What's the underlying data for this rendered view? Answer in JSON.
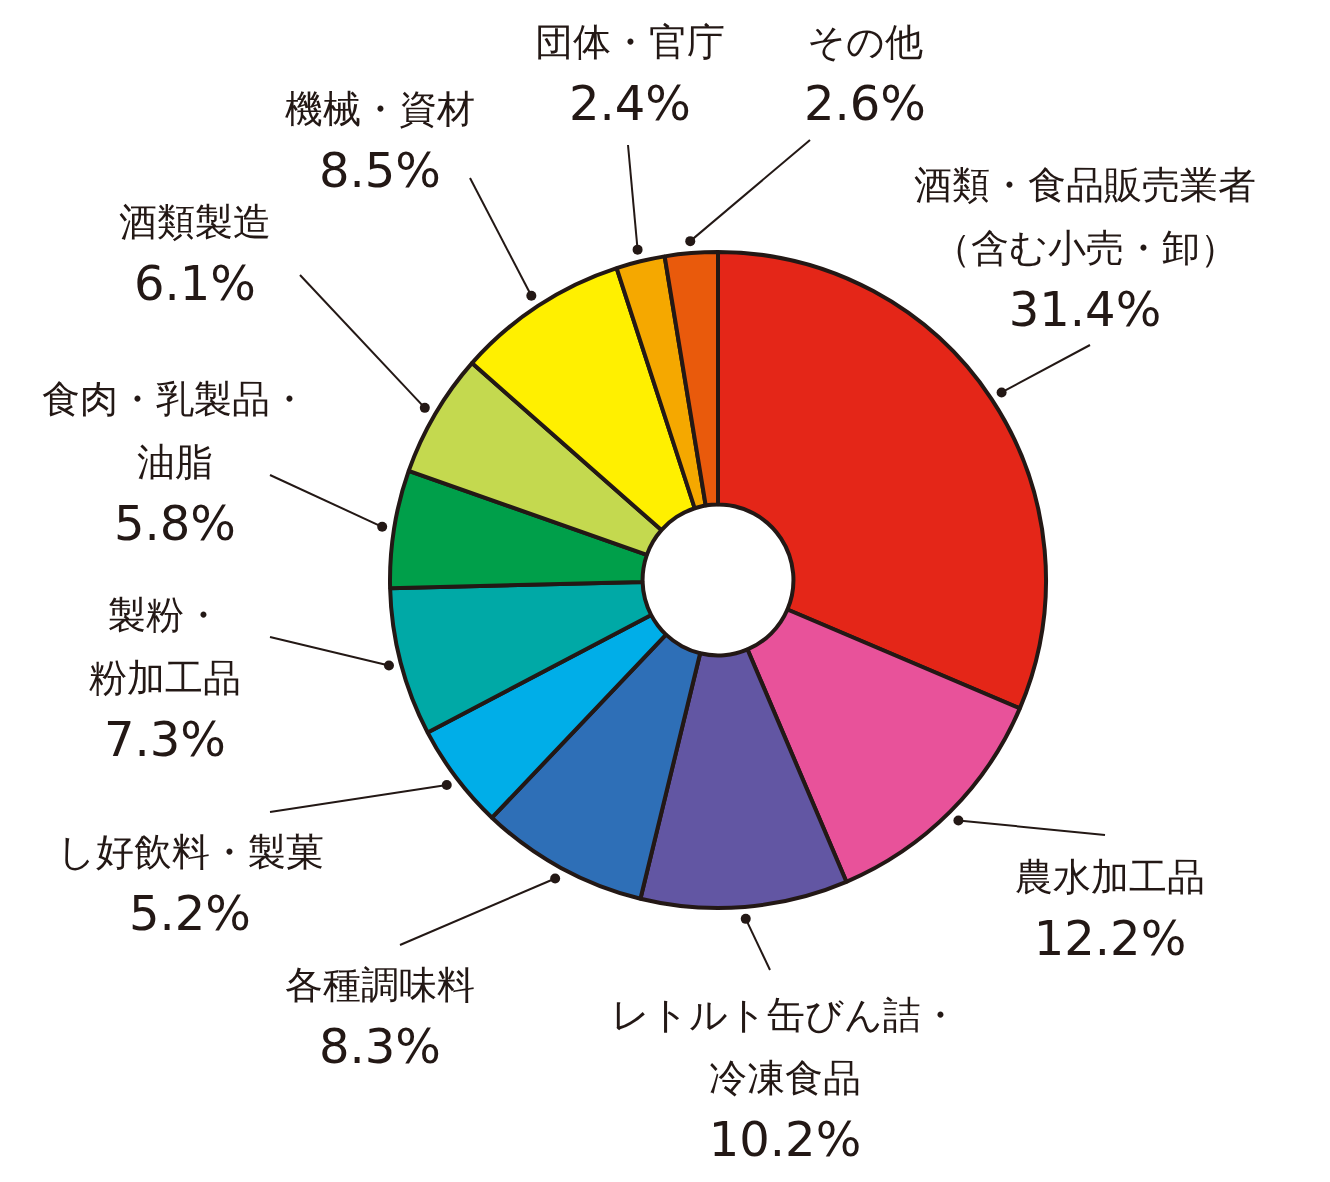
{
  "chart_data": {
    "type": "donut",
    "categories": [
      "酒類・食品販売業者（含む小売・卸）",
      "農水加工品",
      "レトルト缶びん詰・冷凍食品",
      "各種調味料",
      "し好飲料・製菓",
      "製粉・粉加工品",
      "食肉・乳製品・油脂",
      "酒類製造",
      "機械・資材",
      "団体・官庁",
      "その他"
    ],
    "values": [
      31.4,
      12.2,
      10.2,
      8.3,
      5.2,
      7.3,
      5.8,
      6.1,
      8.5,
      2.4,
      2.6
    ],
    "value_labels": [
      "31.4%",
      "12.2%",
      "10.2%",
      "8.3%",
      "5.2%",
      "7.3%",
      "5.8%",
      "6.1%",
      "8.5%",
      "2.4%",
      "2.6%"
    ],
    "colors": [
      "#e42618",
      "#e8529a",
      "#6256a3",
      "#2e6fb7",
      "#00aee8",
      "#00a9a6",
      "#009f4a",
      "#c4d94f",
      "#fff000",
      "#f5a800",
      "#e95a0c"
    ],
    "legend": false
  }
}
